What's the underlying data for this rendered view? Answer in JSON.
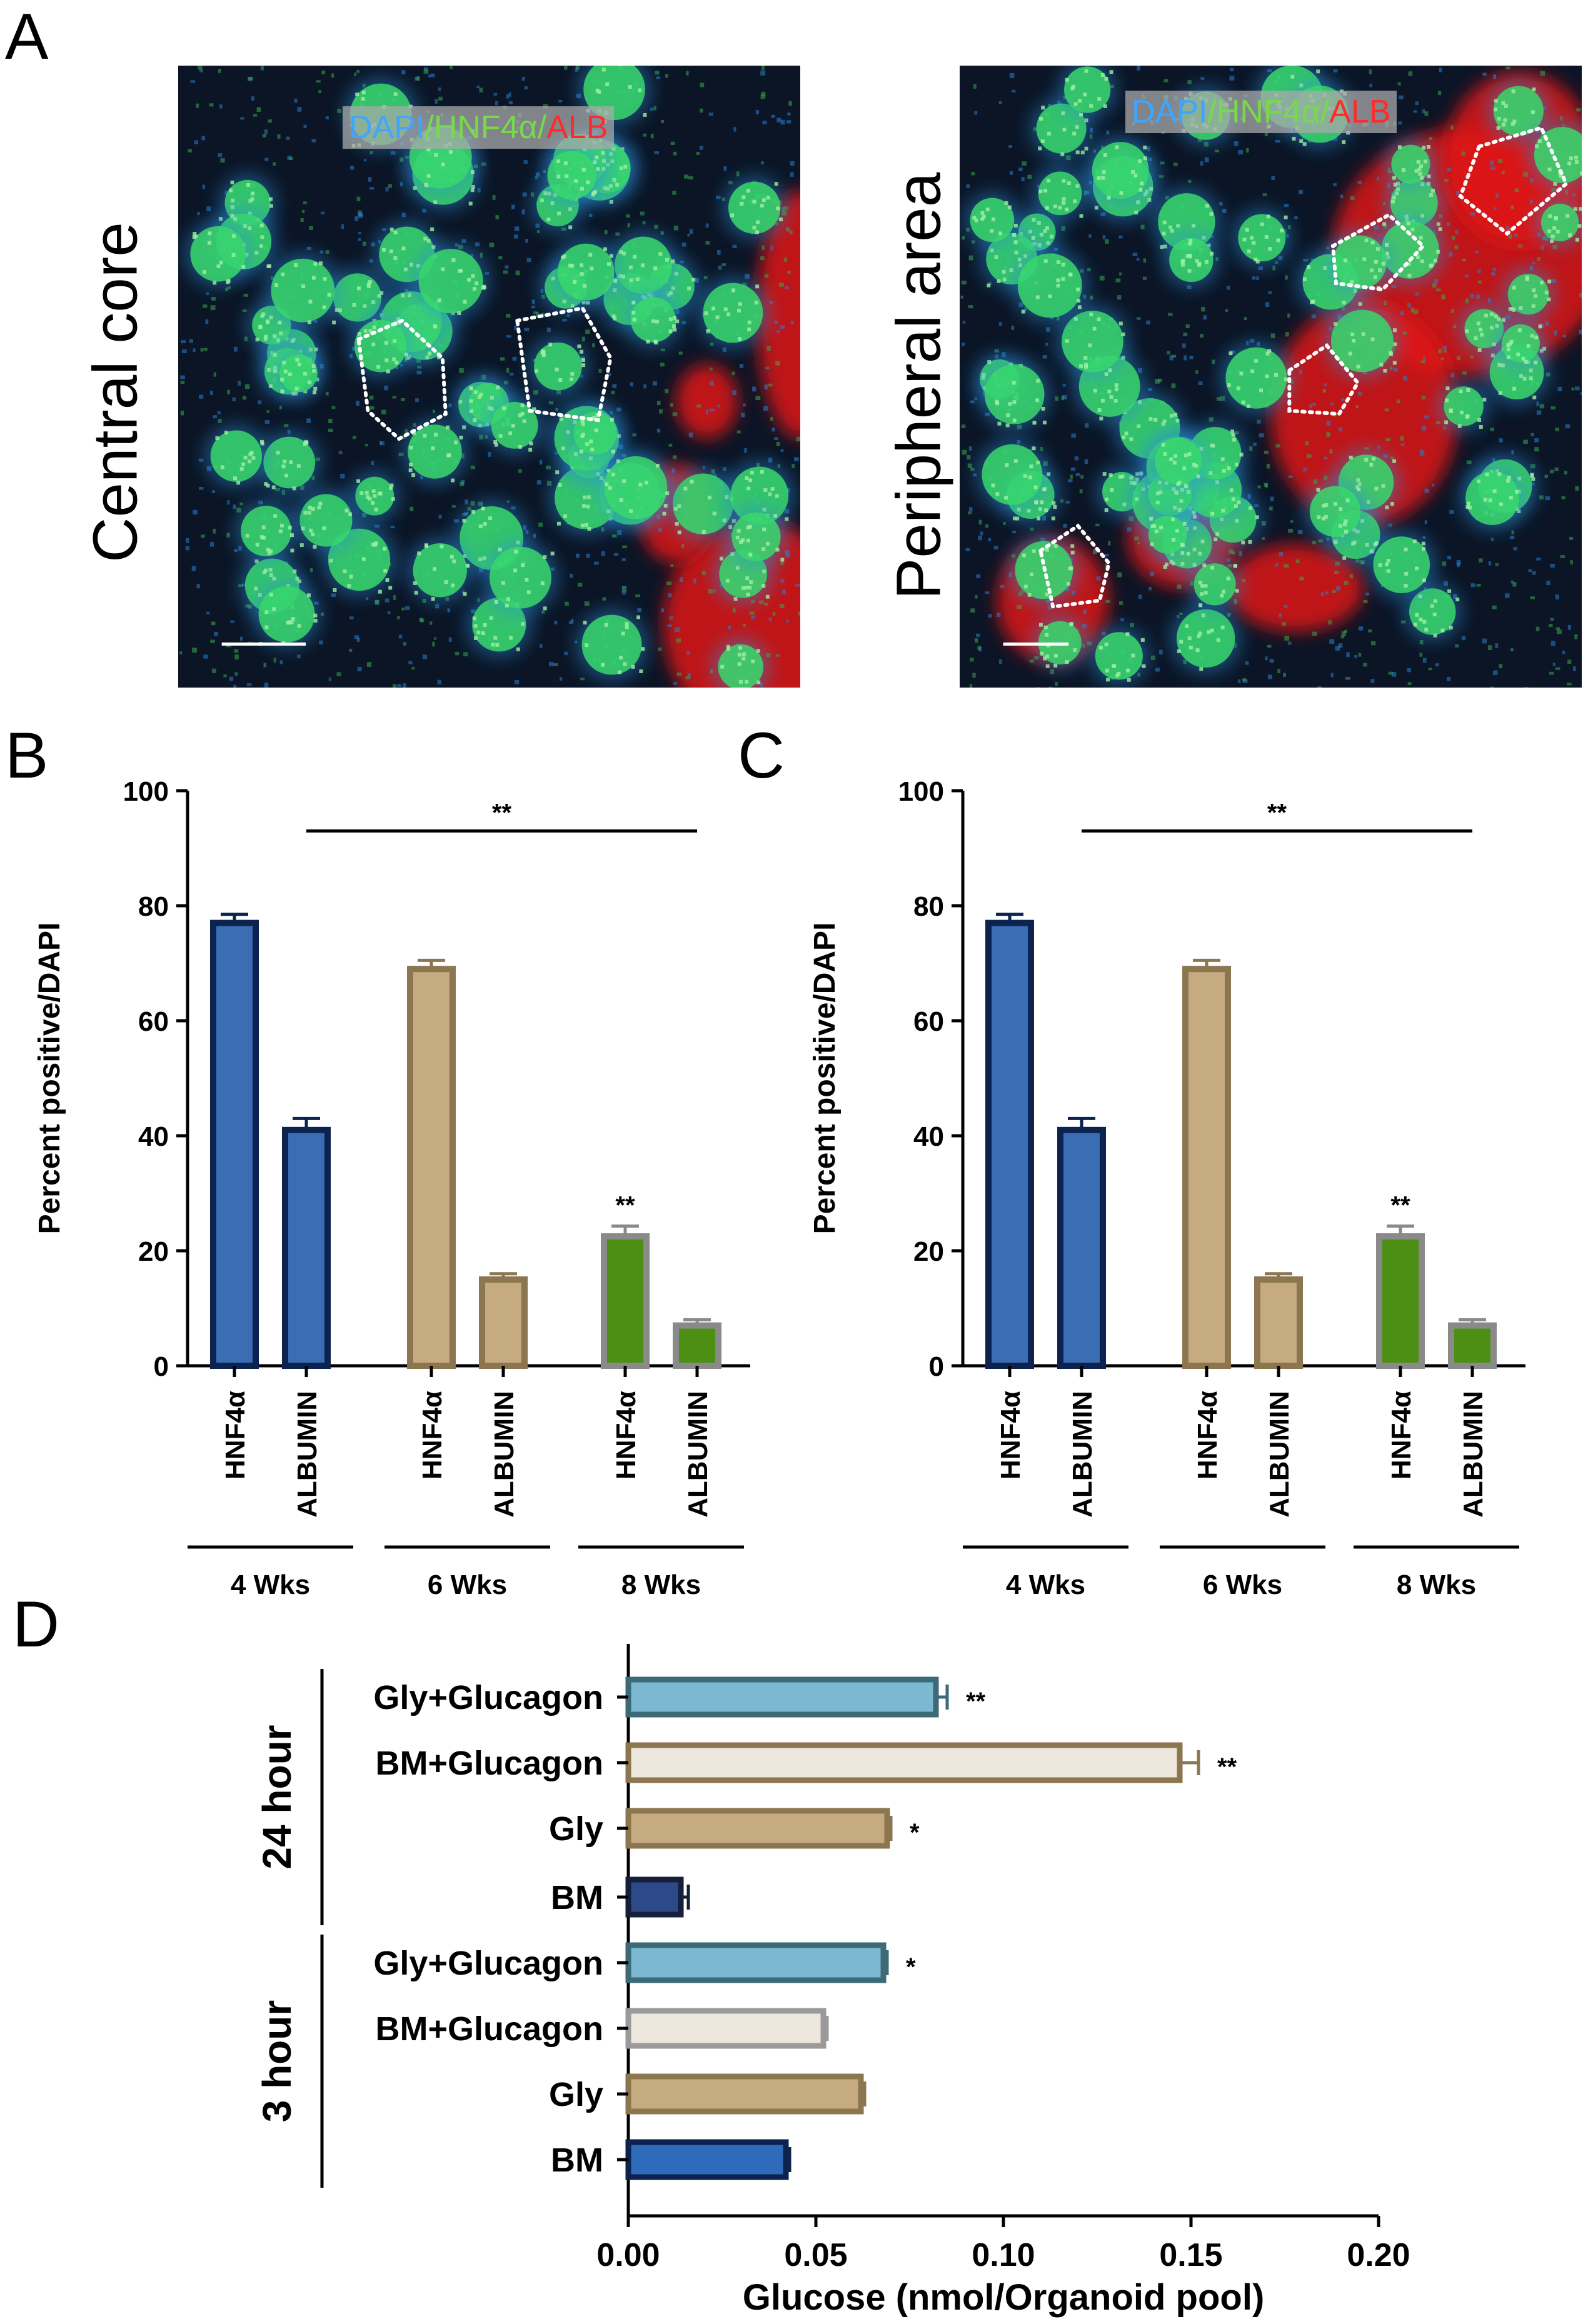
{
  "panels": {
    "A": "A",
    "B": "B",
    "C": "C",
    "D": "D"
  },
  "microscopy": {
    "left": {
      "side_label": "Central core",
      "stain": {
        "dapi": "DAPI",
        "sep1": "/",
        "hnf": "HNF4α",
        "sep2": "/",
        "alb": "ALB"
      }
    },
    "right": {
      "side_label": "Peripheral area",
      "stain": {
        "dapi": "DAPI",
        "sep1": "/",
        "hnf": "HNF4α",
        "sep2": "/",
        "alb": "ALB"
      }
    },
    "colors": {
      "dapi": "#3fa6ff",
      "hnf": "#7ad94a",
      "alb": "#ff2a2a"
    }
  },
  "chart_data": [
    {
      "id": "B",
      "type": "bar",
      "ylabel": "Percent positive/DAPI",
      "ylim": [
        0,
        100
      ],
      "yticks": [
        "0",
        "20",
        "40",
        "60",
        "80",
        "100"
      ],
      "categories": [
        "HNF4α",
        "ALBUMIN",
        "HNF4α",
        "ALBUMIN",
        "HNF4α",
        "ALBUMIN"
      ],
      "groups": [
        "4 Wks",
        "6 Wks",
        "8 Wks"
      ],
      "values": [
        77,
        41,
        69,
        15,
        22.5,
        7
      ],
      "errors": [
        1.5,
        2,
        1.5,
        1,
        1.8,
        1
      ],
      "fills": [
        "#3a6db3",
        "#3a6db3",
        "#c6aa80",
        "#c6aa80",
        "#4c8f12",
        "#4c8f12"
      ],
      "strokes": [
        "#0c2350",
        "#0c2350",
        "#8b7650",
        "#8b7650",
        "#8a8a8a",
        "#8a8a8a"
      ],
      "bar_labels": [
        "",
        "",
        "",
        "",
        "**",
        ""
      ],
      "significance": {
        "from": 1,
        "to": 5,
        "label": "**"
      }
    },
    {
      "id": "C",
      "type": "bar",
      "ylabel": "Percent positive/DAPI",
      "ylim": [
        0,
        100
      ],
      "yticks": [
        "0",
        "20",
        "40",
        "60",
        "80",
        "100"
      ],
      "categories": [
        "HNF4α",
        "ALBUMIN",
        "HNF4α",
        "ALBUMIN",
        "HNF4α",
        "ALBUMIN"
      ],
      "groups": [
        "4 Wks",
        "6 Wks",
        "8 Wks"
      ],
      "values": [
        77,
        41,
        69,
        15,
        22.5,
        7
      ],
      "errors": [
        1.5,
        2,
        1.5,
        1,
        1.8,
        1
      ],
      "fills": [
        "#3a6db3",
        "#3a6db3",
        "#c6aa80",
        "#c6aa80",
        "#4c8f12",
        "#4c8f12"
      ],
      "strokes": [
        "#0c2350",
        "#0c2350",
        "#8b7650",
        "#8b7650",
        "#8a8a8a",
        "#8a8a8a"
      ],
      "bar_labels": [
        "",
        "",
        "",
        "",
        "**",
        ""
      ],
      "significance": {
        "from": 1,
        "to": 5,
        "label": "**"
      }
    },
    {
      "id": "D",
      "type": "bar",
      "orientation": "horizontal",
      "xlabel": "Glucose (nmol/Organoid pool)",
      "xlim": [
        0,
        0.2
      ],
      "xticks": [
        "0.00",
        "0.05",
        "0.10",
        "0.15",
        "0.20"
      ],
      "categories": [
        "Gly+Glucagon",
        "BM+Glucagon",
        "Gly",
        "BM",
        "Gly+Glucagon",
        "BM+Glucagon",
        "Gly",
        "BM"
      ],
      "groups": [
        "24 hour",
        "3 hour"
      ],
      "values": [
        0.082,
        0.147,
        0.069,
        0.014,
        0.068,
        0.052,
        0.062,
        0.042
      ],
      "errors": [
        0.003,
        0.005,
        0.001,
        0.002,
        0.001,
        0.001,
        0.001,
        0.001
      ],
      "fills": [
        "#7ab9cf",
        "#ede6dc",
        "#c6aa80",
        "#2c4a8a",
        "#7ab9cf",
        "#ede6dc",
        "#c6aa80",
        "#2f6bbb"
      ],
      "strokes": [
        "#3e6a78",
        "#8b7650",
        "#8b7650",
        "#151f3a",
        "#3e6a78",
        "#9a9a9a",
        "#8b7650",
        "#0c2350"
      ],
      "bar_labels": [
        "**",
        "**",
        "*",
        "",
        "*",
        "",
        "",
        ""
      ]
    }
  ]
}
